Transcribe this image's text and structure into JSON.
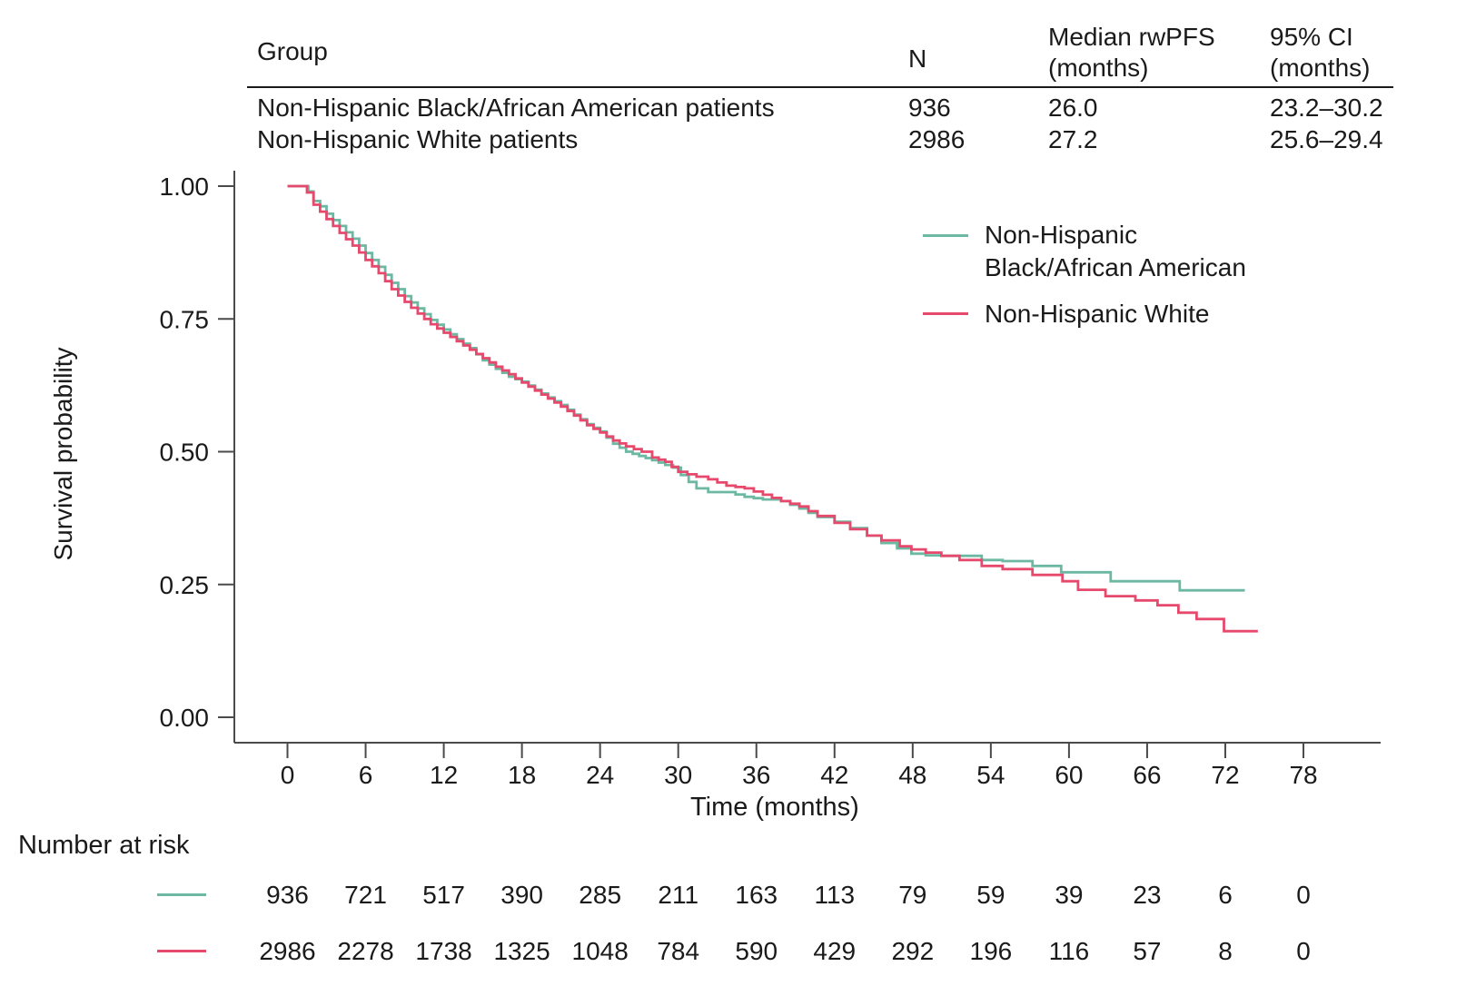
{
  "summary_table": {
    "headers": {
      "group": "Group",
      "n": "N",
      "median_line1": "Median rwPFS",
      "median_line2": "(months)",
      "ci_line1": "95% CI",
      "ci_line2": "(months)"
    },
    "rows": [
      {
        "group": "Non-Hispanic Black/African American patients",
        "n": "936",
        "median": "26.0",
        "ci": "23.2–30.2"
      },
      {
        "group": "Non-Hispanic White patients",
        "n": "2986",
        "median": "27.2",
        "ci": "25.6–29.4"
      }
    ]
  },
  "legend": {
    "items": [
      {
        "label_lines": [
          "Non-Hispanic",
          "Black/African American"
        ],
        "color": "#6cb8a2"
      },
      {
        "label_lines": [
          "Non-Hispanic White"
        ],
        "color": "#e6496c"
      }
    ]
  },
  "chart_data": {
    "type": "line",
    "subtype": "kaplan-meier-step",
    "title": "",
    "xlabel": "Time (months)",
    "ylabel": "Survival probability",
    "x_ticks": [
      0,
      6,
      12,
      18,
      24,
      30,
      36,
      42,
      48,
      54,
      60,
      66,
      72,
      78
    ],
    "y_ticks": [
      {
        "label": "1.00",
        "value": 1.0
      },
      {
        "label": "0.75",
        "value": 0.75
      },
      {
        "label": "0.50",
        "value": 0.5
      },
      {
        "label": "0.25",
        "value": 0.25
      },
      {
        "label": "0.00",
        "value": 0.0
      }
    ],
    "xlim": [
      -4,
      84
    ],
    "ylim": [
      0,
      1.03
    ],
    "grid": false,
    "legend_position": "upper right inside",
    "series": [
      {
        "name": "Non-Hispanic Black/African American",
        "color": "#6cb8a2",
        "median_months": 26.0,
        "points": [
          [
            0,
            1.0
          ],
          [
            1.2,
            1.0
          ],
          [
            1.6,
            0.99
          ],
          [
            2,
            0.972
          ],
          [
            2.5,
            0.962
          ],
          [
            3,
            0.948
          ],
          [
            3.5,
            0.936
          ],
          [
            4,
            0.925
          ],
          [
            4.5,
            0.913
          ],
          [
            5,
            0.901
          ],
          [
            5.5,
            0.888
          ],
          [
            6,
            0.874
          ],
          [
            6.5,
            0.861
          ],
          [
            7,
            0.848
          ],
          [
            7.5,
            0.833
          ],
          [
            8,
            0.818
          ],
          [
            8.5,
            0.806
          ],
          [
            9,
            0.793
          ],
          [
            9.5,
            0.781
          ],
          [
            10,
            0.77
          ],
          [
            10.5,
            0.759
          ],
          [
            11,
            0.748
          ],
          [
            11.5,
            0.739
          ],
          [
            12,
            0.73
          ],
          [
            13,
            0.712
          ],
          [
            14,
            0.695
          ],
          [
            15,
            0.672
          ],
          [
            16,
            0.656
          ],
          [
            17,
            0.641
          ],
          [
            18,
            0.632
          ],
          [
            19,
            0.617
          ],
          [
            20,
            0.602
          ],
          [
            21,
            0.588
          ],
          [
            22,
            0.57
          ],
          [
            23,
            0.552
          ],
          [
            24,
            0.538
          ],
          [
            25,
            0.515
          ],
          [
            26,
            0.5
          ],
          [
            27,
            0.492
          ],
          [
            28,
            0.484
          ],
          [
            29,
            0.475
          ],
          [
            29.6,
            0.47
          ],
          [
            30.2,
            0.456
          ],
          [
            30.8,
            0.443
          ],
          [
            31.4,
            0.431
          ],
          [
            32.3,
            0.424
          ],
          [
            33.7,
            0.424
          ],
          [
            35.1,
            0.415
          ],
          [
            36.5,
            0.41
          ],
          [
            37.9,
            0.407
          ],
          [
            38.6,
            0.4
          ],
          [
            39.3,
            0.393
          ],
          [
            40,
            0.385
          ],
          [
            40.7,
            0.377
          ],
          [
            42,
            0.368
          ],
          [
            43.2,
            0.356
          ],
          [
            44.5,
            0.342
          ],
          [
            45.6,
            0.328
          ],
          [
            46.8,
            0.318
          ],
          [
            47.9,
            0.308
          ],
          [
            49,
            0.305
          ],
          [
            50.2,
            0.304
          ],
          [
            53.3,
            0.296
          ],
          [
            54.9,
            0.294
          ],
          [
            57.2,
            0.285
          ],
          [
            58.1,
            0.285
          ],
          [
            59.4,
            0.273
          ],
          [
            63.2,
            0.256
          ],
          [
            68.5,
            0.239
          ],
          [
            73.5,
            0.239
          ]
        ]
      },
      {
        "name": "Non-Hispanic White",
        "color": "#e6496c",
        "median_months": 27.2,
        "points": [
          [
            0,
            1.0
          ],
          [
            1.1,
            1.0
          ],
          [
            1.5,
            0.988
          ],
          [
            2,
            0.965
          ],
          [
            2.5,
            0.952
          ],
          [
            3,
            0.938
          ],
          [
            3.5,
            0.925
          ],
          [
            4,
            0.912
          ],
          [
            4.5,
            0.9
          ],
          [
            5,
            0.888
          ],
          [
            5.5,
            0.875
          ],
          [
            6,
            0.861
          ],
          [
            6.5,
            0.849
          ],
          [
            7,
            0.836
          ],
          [
            7.5,
            0.821
          ],
          [
            8,
            0.806
          ],
          [
            8.5,
            0.794
          ],
          [
            9,
            0.782
          ],
          [
            9.5,
            0.771
          ],
          [
            10,
            0.76
          ],
          [
            10.5,
            0.75
          ],
          [
            11,
            0.74
          ],
          [
            11.5,
            0.732
          ],
          [
            12,
            0.724
          ],
          [
            13,
            0.708
          ],
          [
            14,
            0.692
          ],
          [
            15,
            0.676
          ],
          [
            16,
            0.66
          ],
          [
            17,
            0.646
          ],
          [
            18,
            0.63
          ],
          [
            19,
            0.615
          ],
          [
            20,
            0.6
          ],
          [
            21,
            0.585
          ],
          [
            22,
            0.568
          ],
          [
            23,
            0.55
          ],
          [
            24,
            0.536
          ],
          [
            25,
            0.521
          ],
          [
            26,
            0.51
          ],
          [
            27.2,
            0.5
          ],
          [
            28,
            0.489
          ],
          [
            29,
            0.481
          ],
          [
            30,
            0.462
          ],
          [
            31.4,
            0.453
          ],
          [
            32.3,
            0.448
          ],
          [
            33.7,
            0.436
          ],
          [
            35.1,
            0.431
          ],
          [
            36.5,
            0.419
          ],
          [
            37.9,
            0.407
          ],
          [
            39.3,
            0.397
          ],
          [
            40.7,
            0.379
          ],
          [
            42,
            0.366
          ],
          [
            43.2,
            0.354
          ],
          [
            44.5,
            0.342
          ],
          [
            45.6,
            0.333
          ],
          [
            47,
            0.322
          ],
          [
            47.9,
            0.316
          ],
          [
            49,
            0.31
          ],
          [
            50.2,
            0.304
          ],
          [
            51.6,
            0.296
          ],
          [
            53.3,
            0.285
          ],
          [
            54.9,
            0.279
          ],
          [
            57.2,
            0.268
          ],
          [
            59.5,
            0.256
          ],
          [
            60.7,
            0.24
          ],
          [
            62.8,
            0.228
          ],
          [
            65.1,
            0.22
          ],
          [
            66.8,
            0.211
          ],
          [
            68.4,
            0.197
          ],
          [
            69.8,
            0.185
          ],
          [
            71.9,
            0.162
          ],
          [
            74.5,
            0.162
          ]
        ]
      }
    ]
  },
  "number_at_risk": {
    "title": "Number at risk",
    "time_points": [
      0,
      6,
      12,
      18,
      24,
      30,
      36,
      42,
      48,
      54,
      60,
      66,
      72,
      78
    ],
    "rows": [
      {
        "name": "Non-Hispanic Black/African American",
        "color": "#6cb8a2",
        "values": [
          "936",
          "721",
          "517",
          "390",
          "285",
          "211",
          "163",
          "113",
          "79",
          "59",
          "39",
          "23",
          "6",
          "0"
        ]
      },
      {
        "name": "Non-Hispanic White",
        "color": "#e6496c",
        "values": [
          "2986",
          "2278",
          "1738",
          "1325",
          "1048",
          "784",
          "590",
          "429",
          "292",
          "196",
          "116",
          "57",
          "8",
          "0"
        ]
      }
    ]
  },
  "colors": {
    "series_black_aa": "#6cb8a2",
    "series_white": "#e6496c",
    "axis": "#4a4a4a",
    "text": "#1a1a1a",
    "background": "#ffffff"
  }
}
